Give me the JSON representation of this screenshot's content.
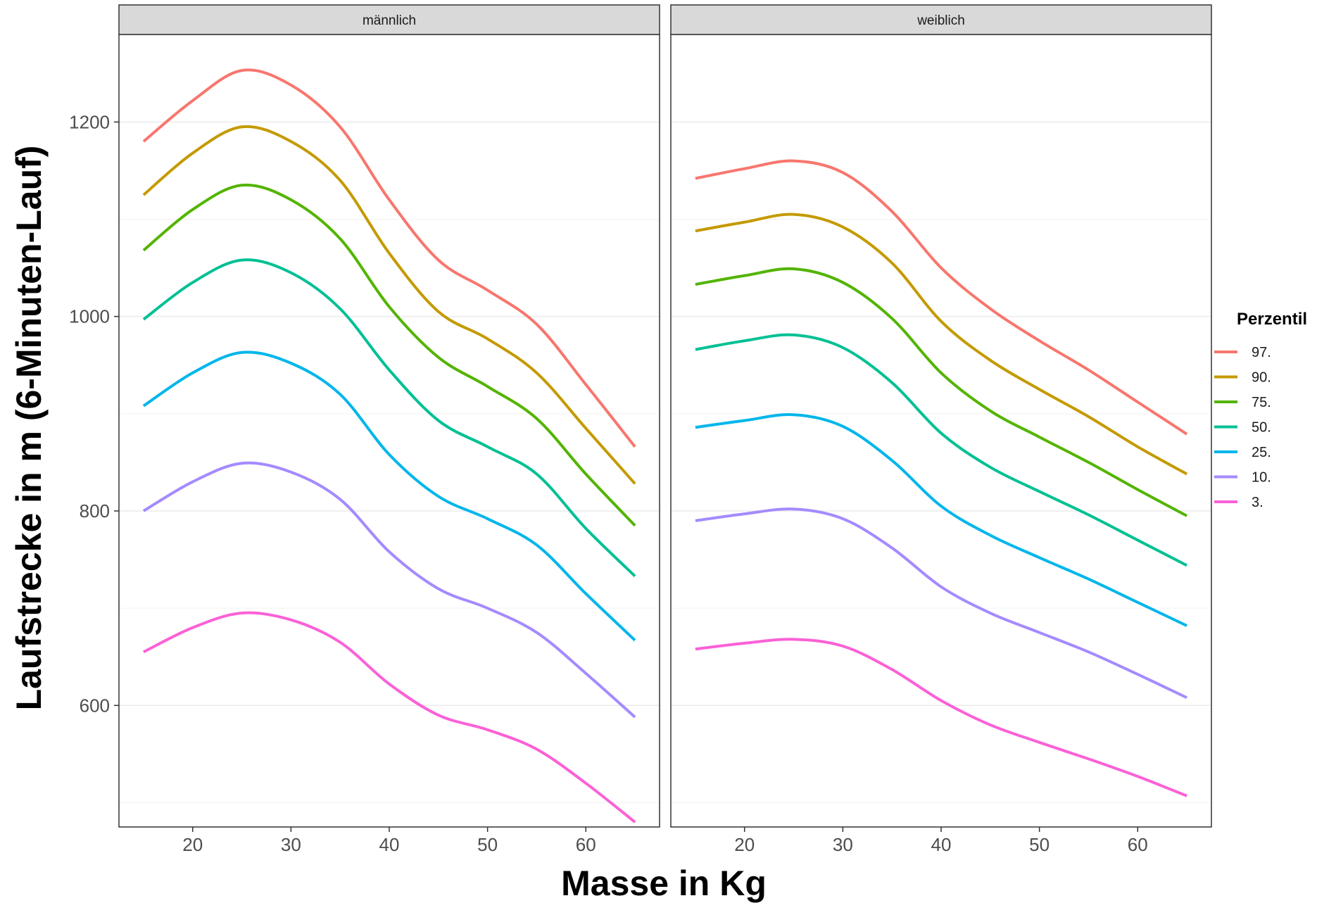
{
  "chart_data": {
    "type": "line",
    "xlabel": "Masse in Kg",
    "ylabel": "Laufstrecke in m (6-Minuten-Lauf)",
    "xlim": [
      12.5,
      67.5
    ],
    "ylim": [
      475,
      1290
    ],
    "x_ticks": [
      20,
      30,
      40,
      50,
      60
    ],
    "y_ticks": [
      600,
      800,
      1000,
      1200
    ],
    "y_minor_gridlines": [
      500,
      700,
      900,
      1100
    ],
    "grid": true,
    "legend": {
      "title": "Perzentil",
      "placement": "right",
      "entries": [
        {
          "label": "97.",
          "color": "#F8766D"
        },
        {
          "label": "90.",
          "color": "#C49A00"
        },
        {
          "label": "75.",
          "color": "#53B400"
        },
        {
          "label": "50.",
          "color": "#00C094"
        },
        {
          "label": "25.",
          "color": "#00B6EB"
        },
        {
          "label": "10.",
          "color": "#A58AFF"
        },
        {
          "label": "3.",
          "color": "#FB61D7"
        }
      ]
    },
    "x": [
      15,
      20,
      25,
      30,
      35,
      40,
      45,
      50,
      55,
      60,
      65
    ],
    "panels": [
      {
        "label": "männlich",
        "series": [
          {
            "name": "97.",
            "color": "#F8766D",
            "values": [
              1180,
              1222,
              1253,
              1238,
              1195,
              1120,
              1058,
              1027,
              992,
              930,
              866
            ]
          },
          {
            "name": "90.",
            "color": "#C49A00",
            "values": [
              1125,
              1168,
              1195,
              1180,
              1140,
              1065,
              1005,
              977,
              942,
              885,
              828
            ]
          },
          {
            "name": "75.",
            "color": "#53B400",
            "values": [
              1068,
              1110,
              1135,
              1120,
              1080,
              1010,
              958,
              928,
              895,
              838,
              785
            ]
          },
          {
            "name": "50.",
            "color": "#00C094",
            "values": [
              997,
              1035,
              1058,
              1045,
              1008,
              945,
              893,
              866,
              838,
              782,
              733
            ]
          },
          {
            "name": "25.",
            "color": "#00B6EB",
            "values": [
              908,
              942,
              963,
              952,
              920,
              858,
              815,
              792,
              765,
              715,
              667
            ]
          },
          {
            "name": "10.",
            "color": "#A58AFF",
            "values": [
              800,
              830,
              849,
              840,
              812,
              758,
              720,
              700,
              675,
              633,
              588
            ]
          },
          {
            "name": "3.",
            "color": "#FB61D7",
            "values": [
              655,
              680,
              695,
              688,
              665,
              622,
              590,
              575,
              555,
              520,
              480
            ]
          }
        ]
      },
      {
        "label": "weiblich",
        "series": [
          {
            "name": "97.",
            "color": "#F8766D",
            "values": [
              1142,
              1152,
              1160,
              1148,
              1108,
              1050,
              1008,
              975,
              945,
              912,
              879
            ]
          },
          {
            "name": "90.",
            "color": "#C49A00",
            "values": [
              1088,
              1097,
              1105,
              1092,
              1055,
              995,
              955,
              925,
              897,
              866,
              838
            ]
          },
          {
            "name": "75.",
            "color": "#53B400",
            "values": [
              1033,
              1042,
              1049,
              1035,
              998,
              942,
              903,
              876,
              850,
              822,
              795
            ]
          },
          {
            "name": "50.",
            "color": "#00C094",
            "values": [
              966,
              975,
              981,
              968,
              932,
              880,
              845,
              820,
              796,
              770,
              744
            ]
          },
          {
            "name": "25.",
            "color": "#00B6EB",
            "values": [
              886,
              893,
              899,
              887,
              852,
              805,
              775,
              752,
              730,
              706,
              682
            ]
          },
          {
            "name": "10.",
            "color": "#A58AFF",
            "values": [
              790,
              797,
              802,
              792,
              762,
              722,
              695,
              675,
              655,
              632,
              608
            ]
          },
          {
            "name": "3.",
            "color": "#FB61D7",
            "values": [
              658,
              664,
              668,
              661,
              637,
              605,
              580,
              562,
              545,
              527,
              507
            ]
          }
        ]
      }
    ]
  }
}
